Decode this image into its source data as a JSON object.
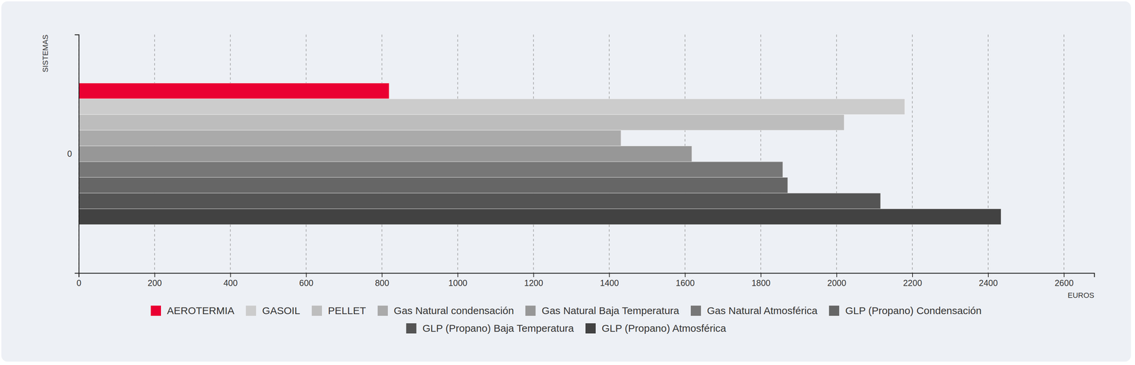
{
  "chart_data": {
    "type": "bar",
    "orientation": "horizontal",
    "x_label": "EUROS",
    "y_label": "SISTEMAS",
    "categories": [
      "0"
    ],
    "series": [
      {
        "name": "AEROTERMIA",
        "color": "#ea0032",
        "values": [
          819
        ]
      },
      {
        "name": "GASOIL",
        "color": "#cccccc",
        "values": [
          2180
        ]
      },
      {
        "name": "PELLET",
        "color": "#bdbdbd",
        "values": [
          2020
        ]
      },
      {
        "name": "Gas Natural condensación",
        "color": "#aaaaaa",
        "values": [
          1431
        ]
      },
      {
        "name": "Gas Natural Baja Temperatura",
        "color": "#979797",
        "values": [
          1618
        ]
      },
      {
        "name": "Gas Natural Atmosférica",
        "color": "#777777",
        "values": [
          1858
        ]
      },
      {
        "name": "GLP (Propano) Condensación",
        "color": "#666666",
        "values": [
          1871
        ]
      },
      {
        "name": "GLP (Propano) Baja Temperatura",
        "color": "#545454",
        "values": [
          2116
        ]
      },
      {
        "name": "GLP (Propano) Atmosférica",
        "color": "#424242",
        "values": [
          2434
        ]
      }
    ],
    "xlim": [
      0,
      2680
    ],
    "xticks": [
      0,
      200,
      400,
      600,
      800,
      1000,
      1200,
      1400,
      1600,
      1800,
      2000,
      2200,
      2400,
      2600
    ],
    "grid": true,
    "legend": "bottom"
  }
}
